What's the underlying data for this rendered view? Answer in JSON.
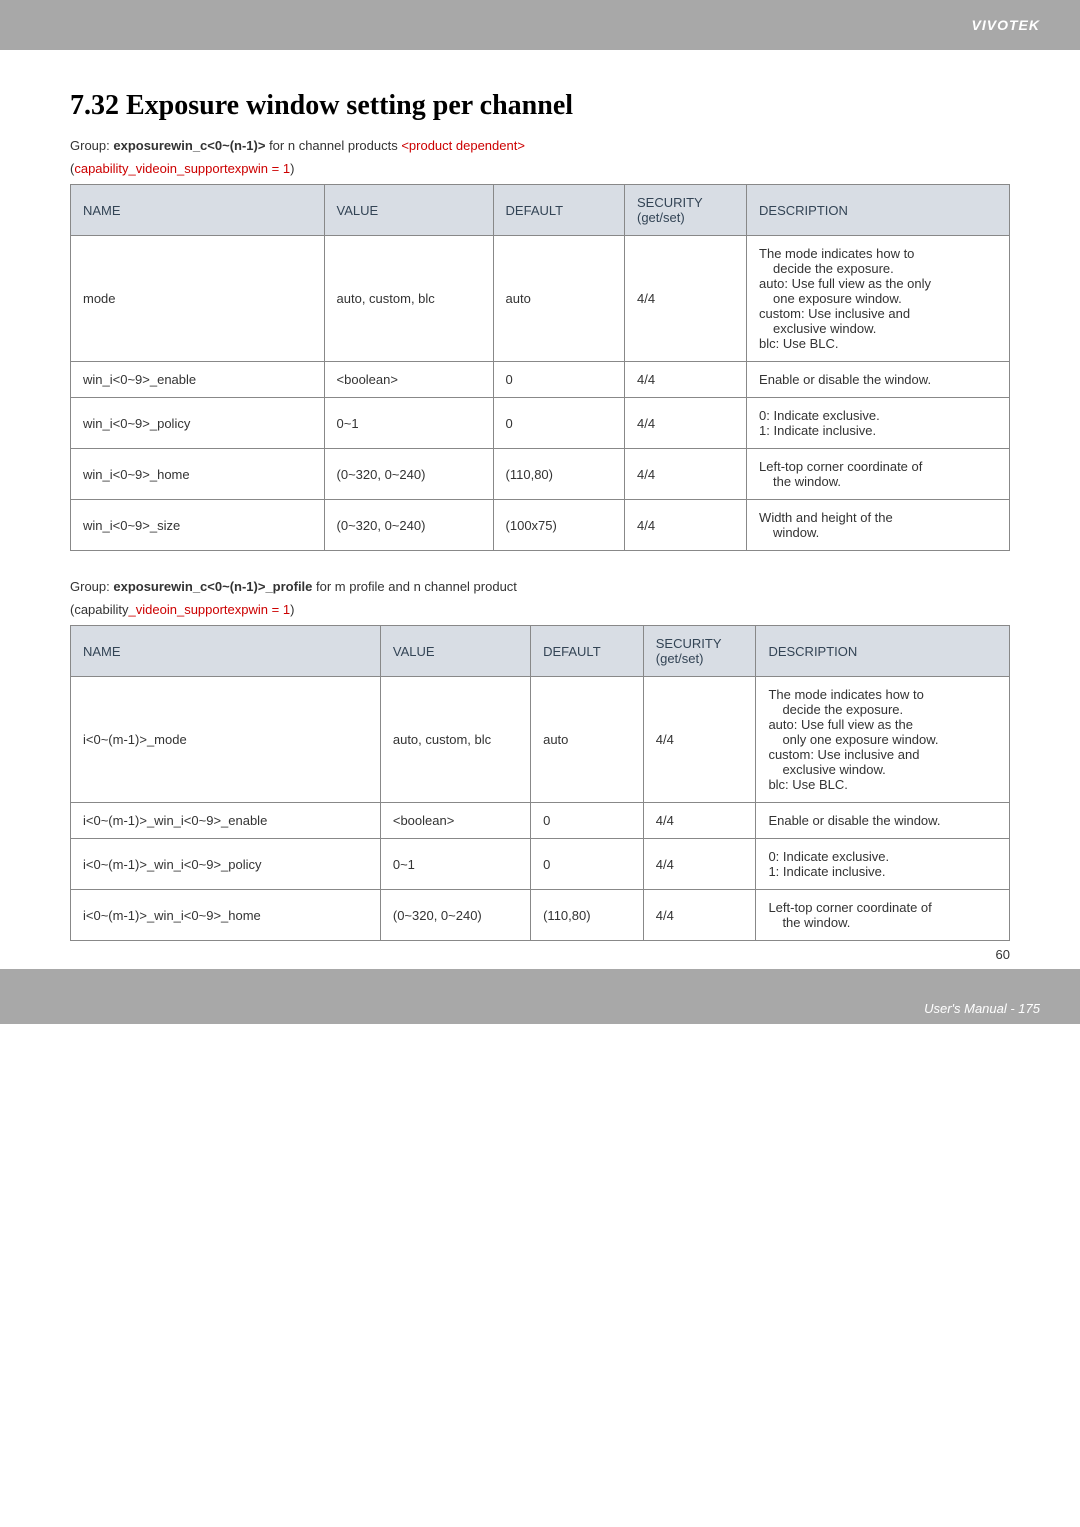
{
  "header": {
    "brand": "VIVOTEK"
  },
  "section": {
    "heading": "7.32 Exposure window setting per channel",
    "group1_prefix": "Group: ",
    "group1_key": "exposurewin_c<0~(n-1)>",
    "group1_suffix": " for n channel products ",
    "group1_red": "<product dependent>",
    "cap1_open": "(",
    "cap1_red": "capability",
    "cap1_tail": "_videoin_supportexpwin = 1",
    "cap1_close": ")",
    "group2_prefix": "Group: ",
    "group2_key": "exposurewin_c<0~(n-1)>_profile",
    "group2_suffix": " for m profile and n channel product",
    "cap2_open": "(capability",
    "cap2_tail": "_videoin_supportexpwin = 1",
    "cap2_close": ")"
  },
  "tableHeaders": {
    "name": "NAME",
    "value": "VALUE",
    "default": "DEFAULT",
    "security": "SECURITY (get/set)",
    "description": "DESCRIPTION"
  },
  "tableA": [
    {
      "name": "mode",
      "value": "auto, custom, blc",
      "default": "auto",
      "security": "4/4",
      "desc_lines": [
        "The mode indicates how to",
        "decide the exposure.",
        "auto: Use full view as the only",
        "one exposure window.",
        "custom: Use inclusive and",
        "exclusive window.",
        "blc: Use BLC."
      ],
      "indent_flags": [
        false,
        true,
        false,
        true,
        false,
        true,
        false
      ]
    },
    {
      "name": "win_i<0~9>_enable",
      "value": "<boolean>",
      "default": "0",
      "security": "4/4",
      "desc_lines": [
        "Enable or disable the window."
      ],
      "indent_flags": [
        false
      ]
    },
    {
      "name": "win_i<0~9>_policy",
      "value": "0~1",
      "default": "0",
      "security": "4/4",
      "desc_lines": [
        "0: Indicate exclusive.",
        "1: Indicate inclusive."
      ],
      "indent_flags": [
        false,
        false
      ]
    },
    {
      "name": "win_i<0~9>_home",
      "value": "(0~320, 0~240)",
      "default": "(110,80)",
      "security": "4/4",
      "desc_lines": [
        "Left-top corner coordinate of",
        "the window."
      ],
      "indent_flags": [
        false,
        true
      ]
    },
    {
      "name": "win_i<0~9>_size",
      "value": "(0~320, 0~240)",
      "default": "(100x75)",
      "security": "4/4",
      "desc_lines": [
        "Width and height of the",
        "window."
      ],
      "indent_flags": [
        false,
        true
      ]
    }
  ],
  "tableB": [
    {
      "name": "i<0~(m-1)>_mode",
      "value": "auto, custom, blc",
      "default": "auto",
      "security": "4/4",
      "desc_lines": [
        "The mode indicates how to",
        "decide the exposure.",
        "auto: Use full view as the",
        "only one exposure window.",
        "custom: Use inclusive and",
        "exclusive window.",
        "blc: Use BLC."
      ],
      "indent_flags": [
        false,
        true,
        false,
        true,
        false,
        true,
        false
      ]
    },
    {
      "name": "i<0~(m-1)>_win_i<0~9>_enable",
      "value": "<boolean>",
      "default": "0",
      "security": "4/4",
      "desc_lines": [
        "Enable or disable the window."
      ],
      "indent_flags": [
        false
      ]
    },
    {
      "name": "i<0~(m-1)>_win_i<0~9>_policy",
      "value": "0~1",
      "default": "0",
      "security": "4/4",
      "desc_lines": [
        "0: Indicate exclusive.",
        "1: Indicate inclusive."
      ],
      "indent_flags": [
        false,
        false
      ]
    },
    {
      "name": "i<0~(m-1)>_win_i<0~9>_home",
      "value": "(0~320, 0~240)",
      "default": "(110,80)",
      "security": "4/4",
      "desc_lines": [
        "Left-top corner coordinate of",
        "the window."
      ],
      "indent_flags": [
        false,
        true
      ]
    }
  ],
  "footer": {
    "pagenum": "60",
    "manual": "User's Manual - 175"
  }
}
